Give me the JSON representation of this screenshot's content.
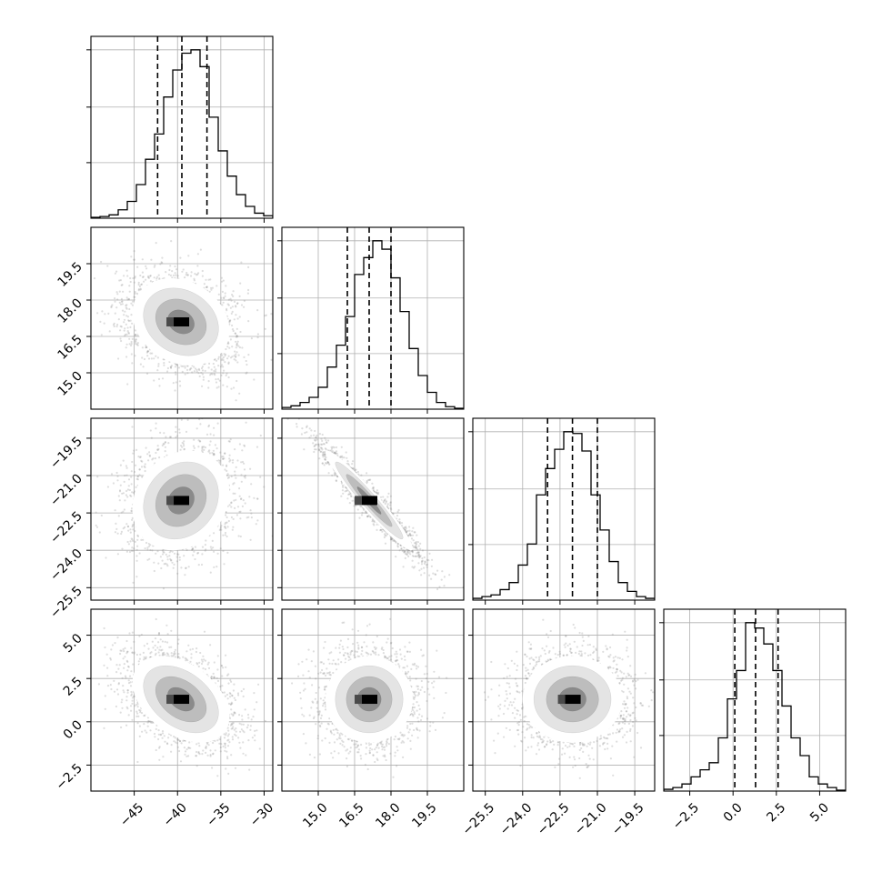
{
  "chart_data": {
    "type": "corner",
    "description_of_panels": "lower-triangle corner plot of 4 parameters: diagonal 1D histograms with dashed quantile lines, off-diagonal 2D density (grayscale scatter, binned density, contours)",
    "grid": true,
    "parameters": [
      {
        "id": "p0",
        "range": [
          -50,
          -29
        ],
        "ticks": [
          -45,
          -40,
          -35,
          -30
        ],
        "tick_labels": [
          "−45",
          "−40",
          "−35",
          "−30"
        ],
        "quantiles": [
          -42.3,
          -39.5,
          -36.6
        ],
        "mean": -39.6,
        "sd": 2.8,
        "hist_x0": -50,
        "hist_dx": 1.05,
        "hist_counts": [
          0.005,
          0.01,
          0.02,
          0.05,
          0.1,
          0.2,
          0.35,
          0.5,
          0.72,
          0.88,
          0.98,
          1.0,
          0.9,
          0.6,
          0.4,
          0.25,
          0.14,
          0.07,
          0.03,
          0.015
        ]
      },
      {
        "id": "p1",
        "range": [
          13.5,
          21.0
        ],
        "ticks": [
          15.0,
          16.5,
          18.0,
          19.5
        ],
        "tick_labels": [
          "15.0",
          "16.5",
          "18.0",
          "19.5"
        ],
        "quantiles": [
          16.2,
          17.1,
          18.0
        ],
        "mean": 17.1,
        "sd": 0.9,
        "hist_x0": 13.5,
        "hist_dx": 0.375,
        "hist_counts": [
          0.01,
          0.02,
          0.04,
          0.07,
          0.13,
          0.25,
          0.38,
          0.55,
          0.8,
          0.9,
          1.0,
          0.95,
          0.78,
          0.58,
          0.36,
          0.2,
          0.1,
          0.04,
          0.015,
          0.005
        ]
      },
      {
        "id": "p2",
        "range": [
          -26.0,
          -18.7
        ],
        "ticks": [
          -25.5,
          -24.0,
          -22.5,
          -21.0,
          -19.5
        ],
        "tick_labels": [
          "−25.5",
          "−24.0",
          "−22.5",
          "−21.0",
          "−19.5"
        ],
        "quantiles": [
          -23.0,
          -22.0,
          -21.0
        ],
        "mean": -22.0,
        "sd": 1.0,
        "hist_x0": -26.0,
        "hist_dx": 0.365,
        "hist_counts": [
          0.01,
          0.02,
          0.03,
          0.06,
          0.1,
          0.2,
          0.32,
          0.6,
          0.75,
          0.86,
          0.96,
          0.95,
          0.85,
          0.6,
          0.4,
          0.22,
          0.1,
          0.05,
          0.02,
          0.01
        ]
      },
      {
        "id": "p3",
        "range": [
          -4.0,
          6.5
        ],
        "ticks": [
          -2.5,
          0.0,
          2.5,
          5.0
        ],
        "tick_labels": [
          "−2.5",
          "0.0",
          "2.5",
          "5.0"
        ],
        "quantiles": [
          0.1,
          1.3,
          2.6
        ],
        "mean": 1.3,
        "sd": 1.25,
        "hist_x0": -4.0,
        "hist_dx": 0.525,
        "hist_counts": [
          0.01,
          0.02,
          0.04,
          0.08,
          0.12,
          0.16,
          0.3,
          0.52,
          0.68,
          0.95,
          0.92,
          0.83,
          0.68,
          0.48,
          0.3,
          0.2,
          0.08,
          0.04,
          0.02,
          0.005
        ]
      }
    ],
    "correlations": [
      {
        "pair": [
          0,
          1
        ],
        "rho": -0.2
      },
      {
        "pair": [
          0,
          2
        ],
        "rho": 0.17
      },
      {
        "pair": [
          1,
          2
        ],
        "rho": -0.96
      },
      {
        "pair": [
          0,
          3
        ],
        "rho": -0.4
      },
      {
        "pair": [
          1,
          3
        ],
        "rho": 0.0
      },
      {
        "pair": [
          2,
          3
        ],
        "rho": 0.0
      }
    ],
    "colors": {
      "axes": "#000000",
      "grid": "#b0b0b0",
      "hist_line": "#000000",
      "scatter": "#888888",
      "density_dark": "#000000"
    }
  }
}
